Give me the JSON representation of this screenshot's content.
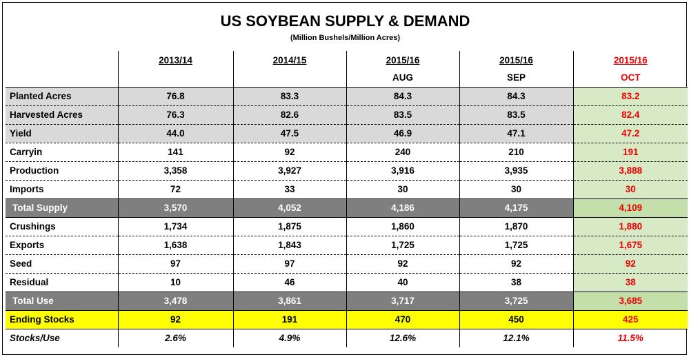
{
  "title": "US SOYBEAN SUPPLY & DEMAND",
  "subtitle": "(Million Bushels/Million Acres)",
  "columns": [
    {
      "year": "2013/14",
      "sub": ""
    },
    {
      "year": "2014/15",
      "sub": ""
    },
    {
      "year": "2015/16",
      "sub": "AUG"
    },
    {
      "year": "2015/16",
      "sub": "SEP"
    },
    {
      "year": "2015/16",
      "sub": "OCT"
    }
  ],
  "rows": [
    {
      "label": "Planted Acres",
      "values": [
        "76.8",
        "83.3",
        "84.3",
        "84.3",
        "83.2"
      ]
    },
    {
      "label": "Harvested Acres",
      "values": [
        "76.3",
        "82.6",
        "83.5",
        "83.5",
        "82.4"
      ]
    },
    {
      "label": "Yield",
      "values": [
        "44.0",
        "47.5",
        "46.9",
        "47.1",
        "47.2"
      ]
    },
    {
      "label": "Carryin",
      "values": [
        "141",
        "92",
        "240",
        "210",
        "191"
      ]
    },
    {
      "label": "Production",
      "values": [
        "3,358",
        "3,927",
        "3,916",
        "3,935",
        "3,888"
      ]
    },
    {
      "label": "Imports",
      "values": [
        "72",
        "33",
        "30",
        "30",
        "30"
      ]
    },
    {
      "label": "Total Supply",
      "values": [
        "3,570",
        "4,052",
        "4,186",
        "4,175",
        "4,109"
      ]
    },
    {
      "label": "Crushings",
      "values": [
        "1,734",
        "1,875",
        "1,860",
        "1,870",
        "1,880"
      ]
    },
    {
      "label": "Exports",
      "values": [
        "1,638",
        "1,843",
        "1,725",
        "1,725",
        "1,675"
      ]
    },
    {
      "label": "Seed",
      "values": [
        "97",
        "97",
        "92",
        "92",
        "92"
      ]
    },
    {
      "label": "Residual",
      "values": [
        "10",
        "46",
        "40",
        "38",
        "38"
      ]
    },
    {
      "label": "Total Use",
      "values": [
        "3,478",
        "3,861",
        "3,717",
        "3,725",
        "3,685"
      ]
    },
    {
      "label": "Ending Stocks",
      "values": [
        "92",
        "191",
        "470",
        "450",
        "425"
      ]
    },
    {
      "label": "Stocks/Use",
      "values": [
        "2.6%",
        "4.9%",
        "12.6%",
        "12.1%",
        "11.5%"
      ]
    }
  ],
  "colors": {
    "grey_row": "#d9d9d9",
    "total_row": "#7f7f7f",
    "highlight_col": "#d8e9c5",
    "ending_row": "#ffff00",
    "oct_text": "#ee0000"
  }
}
